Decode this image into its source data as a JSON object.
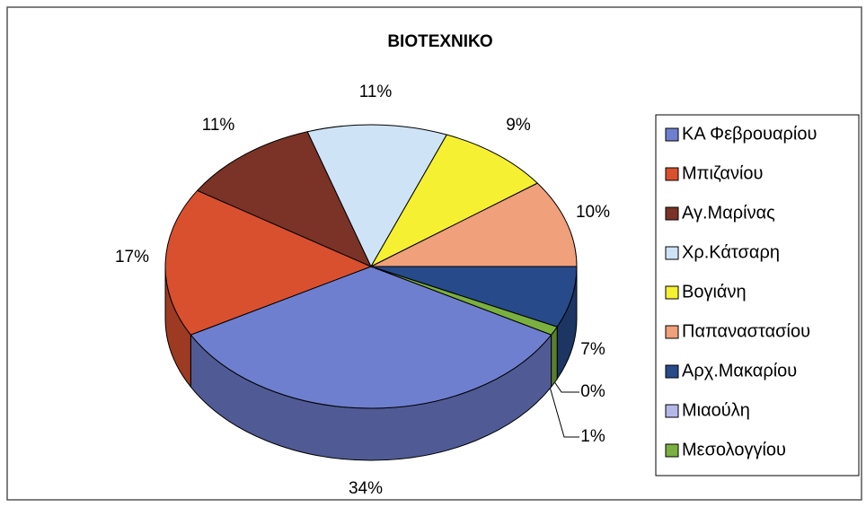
{
  "chart_data": {
    "type": "pie",
    "title": "ΒΙΟΤΕΧΝΙΚΟ",
    "categories": [
      "ΚΑ Φεβρουαρίου",
      "Μπιζανίου",
      "Αγ.Μαρίνας",
      "Χρ.Κάτσαρη",
      "Βογιάνη",
      "Παπαναστασίου",
      "Αρχ.Μακαρίου",
      "Μιαούλη",
      "Μεσολογγίου"
    ],
    "values": [
      34,
      17,
      11,
      11,
      9,
      10,
      7,
      0,
      1
    ],
    "value_labels": [
      "34%",
      "17%",
      "11%",
      "11%",
      "9%",
      "10%",
      "7%",
      "0%",
      "1%"
    ],
    "colors": [
      "#6f7fcf",
      "#d9502f",
      "#7a3326",
      "#cfe3f7",
      "#f5f032",
      "#f0a07a",
      "#274a8a",
      "#b4b8e8",
      "#7ab040"
    ],
    "legend": "right",
    "style": "3d"
  }
}
